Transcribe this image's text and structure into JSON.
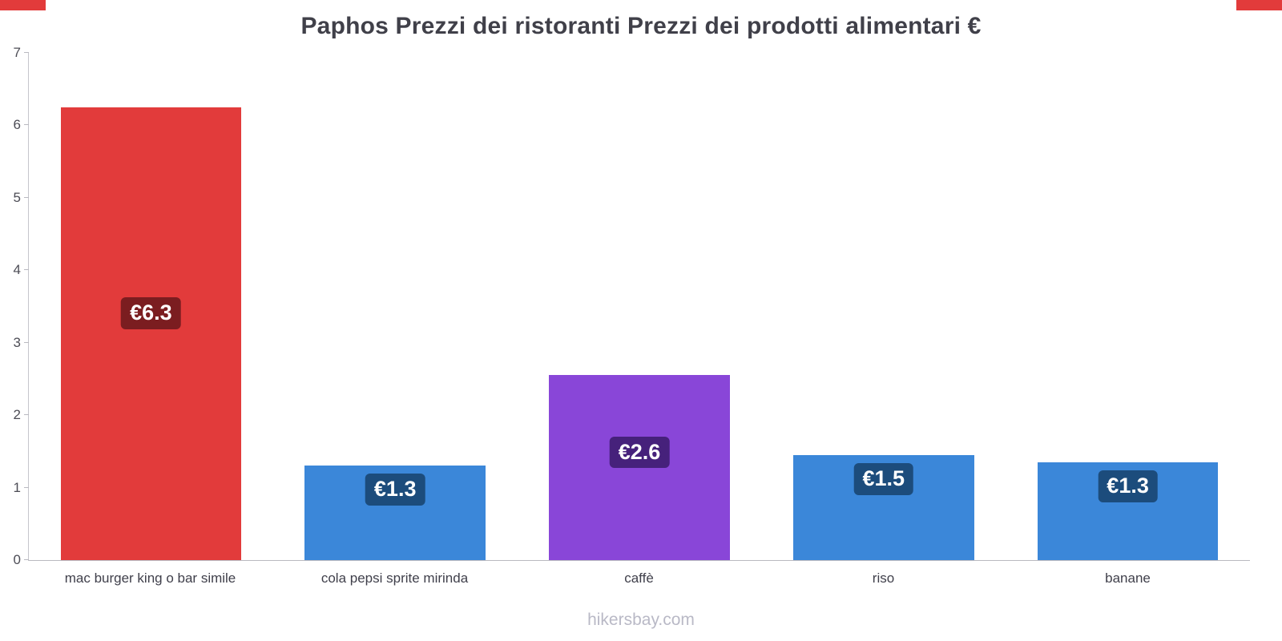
{
  "page": {
    "title": "Paphos Prezzi dei ristoranti Prezzi dei prodotti alimentari €",
    "footer": "hikersbay.com",
    "accent_color": "#e23b3b"
  },
  "chart_data": {
    "type": "bar",
    "title": "Paphos Prezzi dei ristoranti Prezzi dei prodotti alimentari €",
    "categories": [
      "mac burger king o bar simile",
      "cola pepsi sprite mirinda",
      "caffè",
      "riso",
      "banane"
    ],
    "values": [
      6.25,
      1.3,
      2.55,
      1.45,
      1.35
    ],
    "value_labels": [
      "€6.3",
      "€1.3",
      "€2.6",
      "€1.5",
      "€1.3"
    ],
    "bar_colors": [
      "#e23b3b",
      "#3b87d9",
      "#8946d8",
      "#3b87d9",
      "#3b87d9"
    ],
    "label_bg_colors": [
      "#7b1d20",
      "#1c4c7c",
      "#46217b",
      "#1c4c7c",
      "#1c4c7c"
    ],
    "xlabel": "",
    "ylabel": "",
    "ylim": [
      0,
      7
    ],
    "yticks": [
      0,
      1,
      2,
      3,
      4,
      5,
      6,
      7
    ],
    "grid": false,
    "legend": "none",
    "currency": "€"
  }
}
